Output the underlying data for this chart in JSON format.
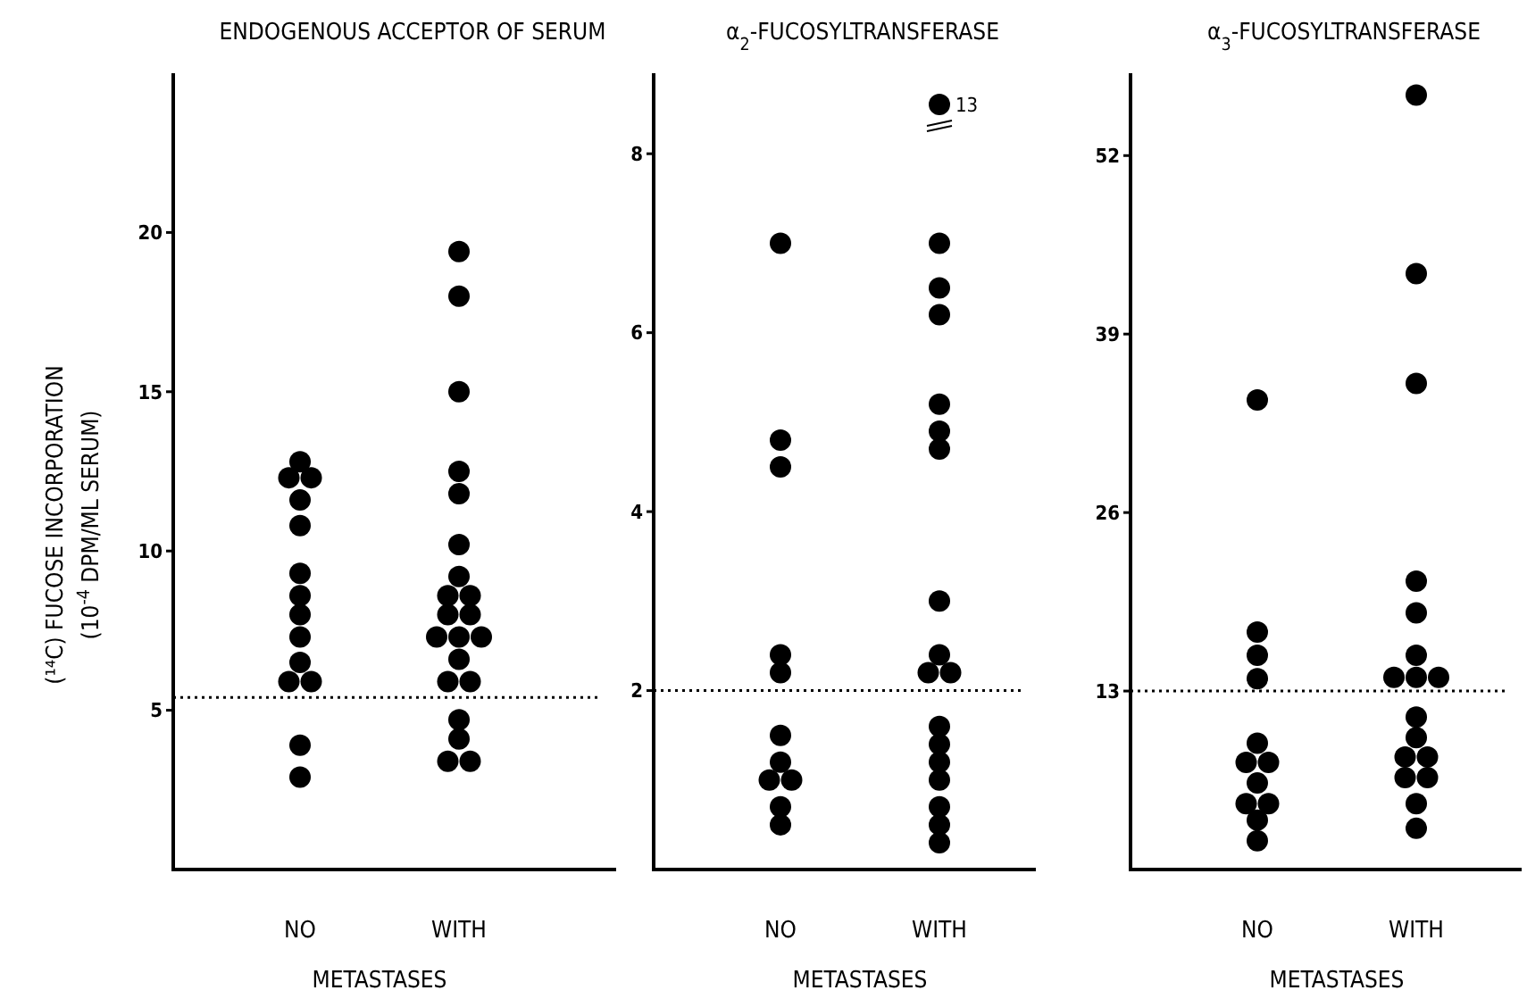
{
  "chart_data": [
    {
      "type": "scatter",
      "title": "ENDOGENOUS ACCEPTOR OF SERUM",
      "ylabel": "(¹⁴C) FUCOSE INCORPORATION\n(10$^{-4}$ DPM/ML SERUM)",
      "xlabel": "METASTASES",
      "categories": [
        "NO",
        "WITH"
      ],
      "ylim": [
        0,
        25
      ],
      "yticks": [
        5,
        10,
        15,
        20
      ],
      "marker": "circle",
      "series": [
        {
          "color": "#000000",
          "x": [
            "NO",
            "NO",
            "NO",
            "NO",
            "NO",
            "NO",
            "NO",
            "NO",
            "NO",
            "NO",
            "NO",
            "NO",
            "NO",
            "NO"
          ],
          "values": [
            12.8,
            12.3,
            12.3,
            11.6,
            10.8,
            9.3,
            8.6,
            8.0,
            7.3,
            6.5,
            5.9,
            5.9,
            3.9,
            2.9
          ]
        },
        {
          "color": "#000000",
          "x": [
            "WITH",
            "WITH",
            "WITH",
            "WITH",
            "WITH",
            "WITH",
            "WITH",
            "WITH",
            "WITH",
            "WITH",
            "WITH",
            "WITH",
            "WITH",
            "WITH",
            "WITH",
            "WITH",
            "WITH",
            "WITH",
            "WITH",
            "WITH",
            "WITH"
          ],
          "values": [
            19.4,
            18.0,
            15.0,
            12.5,
            11.8,
            10.2,
            9.2,
            8.6,
            8.6,
            8.0,
            8.0,
            7.3,
            7.3,
            7.3,
            6.6,
            5.9,
            5.9,
            4.7,
            4.1,
            3.4,
            3.4
          ]
        }
      ],
      "ref_lines": [
        {
          "axis": "y",
          "value": 5.4,
          "line_style": "dotted",
          "color": "#000000"
        }
      ]
    },
    {
      "type": "scatter",
      "title": "α$_{2}$-FUCOSYLTRANSFERASE",
      "xlabel": "METASTASES",
      "categories": [
        "NO",
        "WITH"
      ],
      "ylim": [
        0,
        8.9
      ],
      "yticks": [
        2,
        4,
        6,
        8
      ],
      "marker": "circle",
      "series": [
        {
          "color": "#000000",
          "x": [
            "NO",
            "NO",
            "NO",
            "NO",
            "NO",
            "NO",
            "NO",
            "NO",
            "NO",
            "NO",
            "NO"
          ],
          "values": [
            7.0,
            4.8,
            4.5,
            2.4,
            2.2,
            1.5,
            1.2,
            1.0,
            1.0,
            0.7,
            0.5
          ]
        },
        {
          "color": "#000000",
          "x": [
            "WITH",
            "WITH",
            "WITH",
            "WITH",
            "WITH",
            "WITH",
            "WITH",
            "WITH",
            "WITH",
            "WITH",
            "WITH",
            "WITH",
            "WITH",
            "WITH",
            "WITH",
            "WITH",
            "WITH"
          ],
          "values": [
            7.0,
            6.5,
            6.2,
            5.2,
            4.9,
            4.7,
            3.0,
            2.4,
            2.2,
            2.2,
            1.6,
            1.4,
            1.2,
            1.0,
            0.7,
            0.5,
            0.3
          ]
        }
      ],
      "annotations": [
        {
          "text": "13",
          "x": "WITH",
          "y": 8.55
        }
      ],
      "ref_lines": [
        {
          "axis": "y",
          "value": 2.0,
          "line_style": "dotted",
          "color": "#000000"
        }
      ]
    },
    {
      "type": "scatter",
      "title": "α$_{3}$-FUCOSYLTRANSFERASE",
      "xlabel": "METASTASES",
      "categories": [
        "NO",
        "WITH"
      ],
      "ylim": [
        0,
        58
      ],
      "yticks": [
        13,
        26,
        39,
        52
      ],
      "marker": "circle",
      "series": [
        {
          "color": "#000000",
          "x": [
            "NO",
            "NO",
            "NO",
            "NO",
            "NO",
            "NO",
            "NO",
            "NO",
            "NO",
            "NO",
            "NO",
            "NO"
          ],
          "values": [
            34.2,
            17.3,
            15.6,
            13.9,
            9.2,
            7.8,
            7.8,
            6.3,
            4.8,
            4.8,
            3.6,
            2.1
          ]
        },
        {
          "color": "#000000",
          "x": [
            "WITH",
            "WITH",
            "WITH",
            "WITH",
            "WITH",
            "WITH",
            "WITH",
            "WITH",
            "WITH",
            "WITH",
            "WITH",
            "WITH",
            "WITH",
            "WITH",
            "WITH",
            "WITH",
            "WITH"
          ],
          "values": [
            56.4,
            43.4,
            35.4,
            21.0,
            18.7,
            15.6,
            14.0,
            14.0,
            14.0,
            11.1,
            9.6,
            8.2,
            8.2,
            6.7,
            6.7,
            4.8,
            3.0
          ]
        }
      ],
      "ref_lines": [
        {
          "axis": "y",
          "value": 13,
          "line_style": "dotted",
          "color": "#000000"
        }
      ]
    }
  ]
}
